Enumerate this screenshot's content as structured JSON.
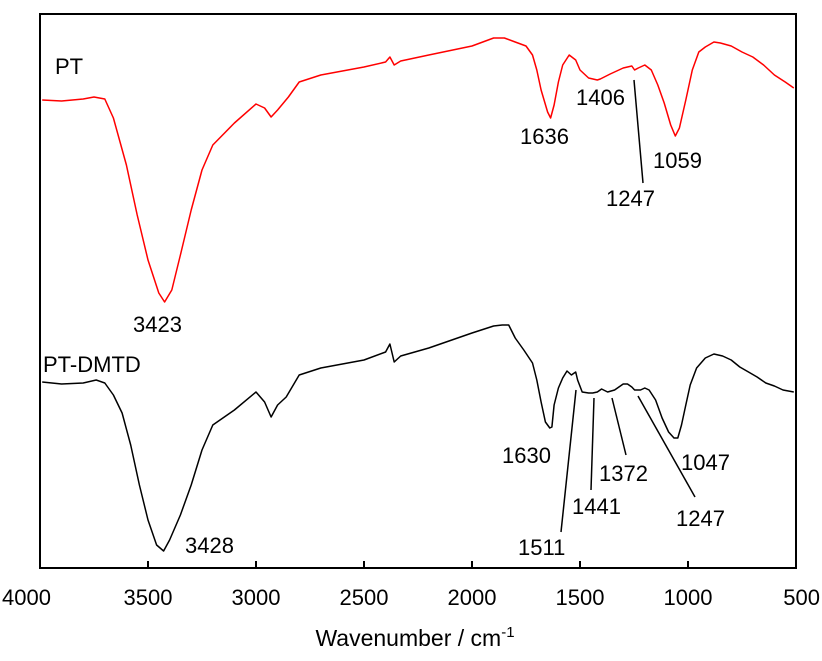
{
  "chart_data": {
    "type": "line",
    "title": "",
    "xlabel": "Wavenumber / cm",
    "xlabel_superscript": "-1",
    "ylabel": "",
    "xlim": [
      4000,
      500
    ],
    "x_reversed": true,
    "x_ticks": [
      "4000",
      "3500",
      "3000",
      "2500",
      "2000",
      "1500",
      "1000",
      "500"
    ],
    "y_ticks_shown": false,
    "grid": false,
    "legend": "none",
    "series": [
      {
        "name": "PT",
        "color": "#ff0000",
        "points": [
          [
            3990,
            100
          ],
          [
            3900,
            101
          ],
          [
            3800,
            99
          ],
          [
            3750,
            97
          ],
          [
            3700,
            99
          ],
          [
            3660,
            118
          ],
          [
            3600,
            165
          ],
          [
            3550,
            215
          ],
          [
            3500,
            260
          ],
          [
            3450,
            293
          ],
          [
            3423,
            302
          ],
          [
            3390,
            290
          ],
          [
            3350,
            255
          ],
          [
            3300,
            210
          ],
          [
            3250,
            170
          ],
          [
            3200,
            145
          ],
          [
            3100,
            123
          ],
          [
            3000,
            104
          ],
          [
            2960,
            108
          ],
          [
            2930,
            117
          ],
          [
            2900,
            110
          ],
          [
            2850,
            97
          ],
          [
            2800,
            82
          ],
          [
            2700,
            75
          ],
          [
            2500,
            67
          ],
          [
            2400,
            62
          ],
          [
            2380,
            57
          ],
          [
            2360,
            65
          ],
          [
            2330,
            61
          ],
          [
            2200,
            55
          ],
          [
            2000,
            46
          ],
          [
            1900,
            38
          ],
          [
            1850,
            38
          ],
          [
            1800,
            42
          ],
          [
            1750,
            46
          ],
          [
            1720,
            55
          ],
          [
            1700,
            70
          ],
          [
            1680,
            90
          ],
          [
            1650,
            112
          ],
          [
            1636,
            118
          ],
          [
            1620,
            105
          ],
          [
            1600,
            82
          ],
          [
            1580,
            65
          ],
          [
            1550,
            55
          ],
          [
            1520,
            60
          ],
          [
            1500,
            70
          ],
          [
            1460,
            78
          ],
          [
            1420,
            80
          ],
          [
            1406,
            79
          ],
          [
            1360,
            74
          ],
          [
            1300,
            68
          ],
          [
            1260,
            66
          ],
          [
            1247,
            70
          ],
          [
            1230,
            68
          ],
          [
            1200,
            65
          ],
          [
            1170,
            70
          ],
          [
            1140,
            85
          ],
          [
            1110,
            103
          ],
          [
            1080,
            125
          ],
          [
            1059,
            136
          ],
          [
            1040,
            128
          ],
          [
            1010,
            100
          ],
          [
            980,
            70
          ],
          [
            950,
            52
          ],
          [
            920,
            47
          ],
          [
            880,
            42
          ],
          [
            850,
            43
          ],
          [
            800,
            46
          ],
          [
            750,
            52
          ],
          [
            700,
            57
          ],
          [
            650,
            65
          ],
          [
            600,
            75
          ],
          [
            550,
            82
          ],
          [
            510,
            88
          ]
        ],
        "annotations": [
          "3423",
          "1636",
          "1406",
          "1247",
          "1059"
        ]
      },
      {
        "name": "PT-DMTD",
        "color": "#000000",
        "points": [
          [
            3990,
            382
          ],
          [
            3900,
            384
          ],
          [
            3800,
            383
          ],
          [
            3740,
            380
          ],
          [
            3700,
            383
          ],
          [
            3660,
            395
          ],
          [
            3620,
            413
          ],
          [
            3580,
            445
          ],
          [
            3540,
            485
          ],
          [
            3500,
            520
          ],
          [
            3460,
            545
          ],
          [
            3428,
            551
          ],
          [
            3400,
            540
          ],
          [
            3350,
            515
          ],
          [
            3300,
            485
          ],
          [
            3250,
            450
          ],
          [
            3200,
            425
          ],
          [
            3100,
            410
          ],
          [
            3000,
            392
          ],
          [
            2960,
            402
          ],
          [
            2930,
            417
          ],
          [
            2900,
            405
          ],
          [
            2860,
            397
          ],
          [
            2800,
            375
          ],
          [
            2700,
            368
          ],
          [
            2500,
            360
          ],
          [
            2400,
            352
          ],
          [
            2380,
            344
          ],
          [
            2360,
            362
          ],
          [
            2330,
            356
          ],
          [
            2200,
            348
          ],
          [
            2000,
            333
          ],
          [
            1900,
            326
          ],
          [
            1860,
            325
          ],
          [
            1830,
            325
          ],
          [
            1800,
            338
          ],
          [
            1760,
            350
          ],
          [
            1720,
            363
          ],
          [
            1700,
            380
          ],
          [
            1680,
            402
          ],
          [
            1660,
            422
          ],
          [
            1640,
            428
          ],
          [
            1630,
            427
          ],
          [
            1620,
            405
          ],
          [
            1600,
            388
          ],
          [
            1580,
            378
          ],
          [
            1560,
            371
          ],
          [
            1540,
            375
          ],
          [
            1520,
            372
          ],
          [
            1511,
            380
          ],
          [
            1490,
            392
          ],
          [
            1460,
            393
          ],
          [
            1441,
            393
          ],
          [
            1420,
            392
          ],
          [
            1400,
            389
          ],
          [
            1372,
            392
          ],
          [
            1340,
            390
          ],
          [
            1300,
            384
          ],
          [
            1280,
            384
          ],
          [
            1260,
            387
          ],
          [
            1247,
            390
          ],
          [
            1220,
            390
          ],
          [
            1200,
            388
          ],
          [
            1180,
            390
          ],
          [
            1150,
            400
          ],
          [
            1120,
            418
          ],
          [
            1090,
            432
          ],
          [
            1065,
            438
          ],
          [
            1047,
            438
          ],
          [
            1030,
            425
          ],
          [
            1010,
            405
          ],
          [
            990,
            385
          ],
          [
            960,
            368
          ],
          [
            920,
            358
          ],
          [
            880,
            354
          ],
          [
            840,
            356
          ],
          [
            800,
            360
          ],
          [
            760,
            367
          ],
          [
            720,
            372
          ],
          [
            680,
            377
          ],
          [
            640,
            383
          ],
          [
            600,
            386
          ],
          [
            560,
            390
          ],
          [
            510,
            392
          ]
        ],
        "annotations": [
          "3428",
          "1630",
          "1511",
          "1441",
          "1372",
          "1247",
          "1047"
        ]
      }
    ]
  }
}
